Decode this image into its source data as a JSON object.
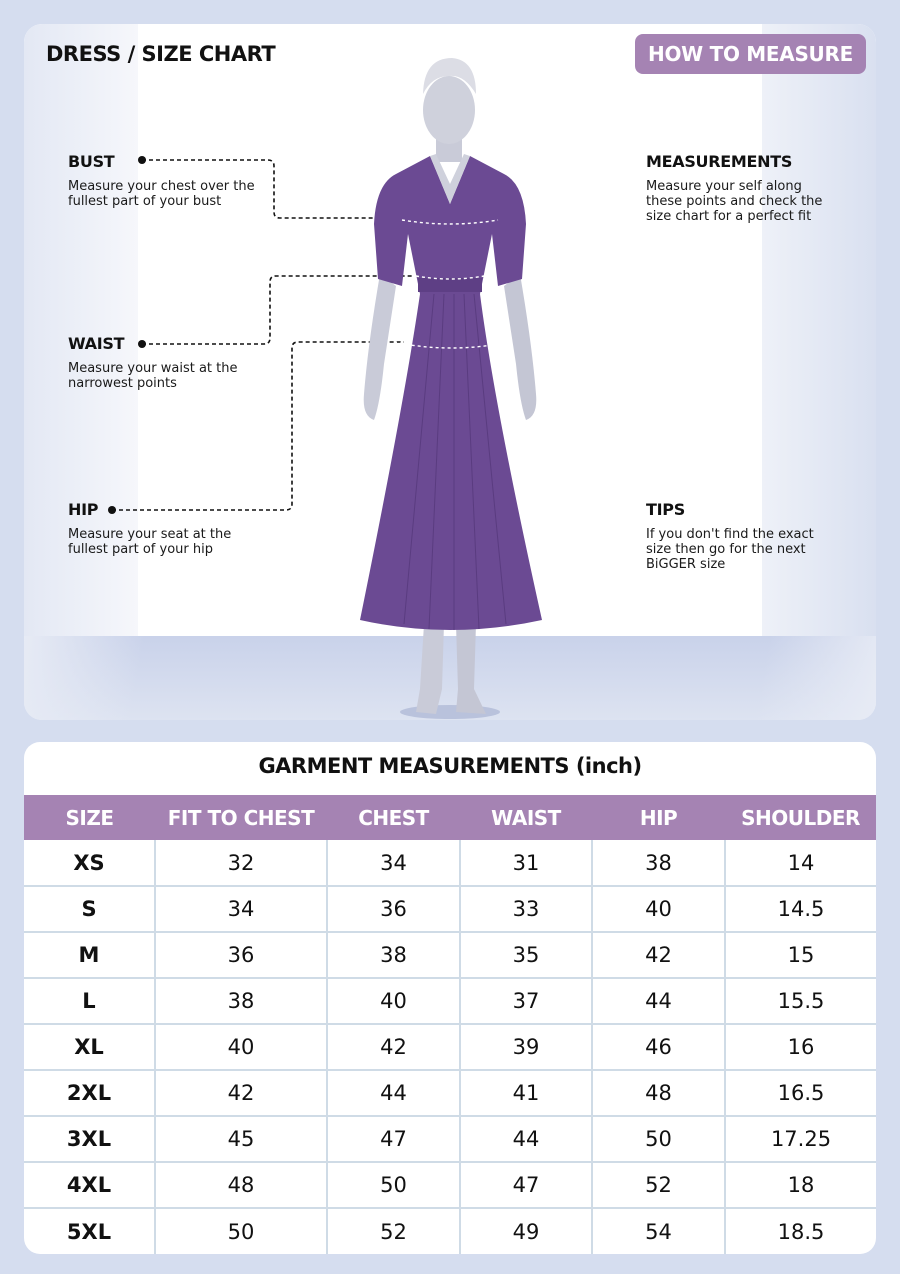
{
  "header": {
    "title": "DRESS / SIZE CHART",
    "how_to_measure": "HOW TO MEASURE"
  },
  "left_guides": [
    {
      "label": "BUST",
      "text": "Measure your chest over the fullest part of your bust"
    },
    {
      "label": "WAIST",
      "text": "Measure your waist at the narrowest points"
    },
    {
      "label": "HIP",
      "text": "Measure your seat at the fullest part of your hip"
    }
  ],
  "right_notes": [
    {
      "label": "MEASUREMENTS",
      "text": "Measure your self along these points and check the size chart for a perfect fit"
    },
    {
      "label": "TIPS",
      "text": "If you don't find the exact size then go for the next BiGGER size"
    }
  ],
  "colors": {
    "accent": "#a583b3",
    "dress": "#6b4a93",
    "background": "#d5ddef"
  },
  "table": {
    "title": "GARMENT MEASUREMENTS (inch)",
    "columns": [
      "SIZE",
      "FIT TO CHEST",
      "CHEST",
      "WAIST",
      "HIP",
      "SHOULDER"
    ],
    "rows": [
      [
        "XS",
        "32",
        "34",
        "31",
        "38",
        "14"
      ],
      [
        "S",
        "34",
        "36",
        "33",
        "40",
        "14.5"
      ],
      [
        "M",
        "36",
        "38",
        "35",
        "42",
        "15"
      ],
      [
        "L",
        "38",
        "40",
        "37",
        "44",
        "15.5"
      ],
      [
        "XL",
        "40",
        "42",
        "39",
        "46",
        "16"
      ],
      [
        "2XL",
        "42",
        "44",
        "41",
        "48",
        "16.5"
      ],
      [
        "3XL",
        "45",
        "47",
        "44",
        "50",
        "17.25"
      ],
      [
        "4XL",
        "48",
        "50",
        "47",
        "52",
        "18"
      ],
      [
        "5XL",
        "50",
        "52",
        "49",
        "54",
        "18.5"
      ]
    ]
  }
}
